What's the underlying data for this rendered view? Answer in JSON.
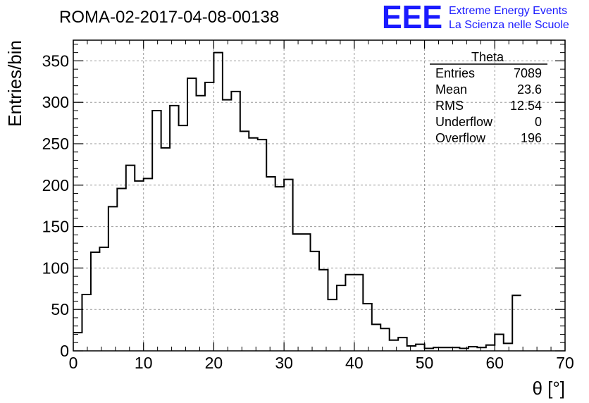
{
  "header": {
    "title": "ROMA-02-2017-04-08-00138"
  },
  "logo": {
    "mark": "EEE",
    "line1": "Extreme Energy Events",
    "line2": "La Scienza nelle Scuole",
    "color": "#1a1aff"
  },
  "stats_box": {
    "name": "Theta",
    "rows": [
      {
        "label": "Entries",
        "value": "7089"
      },
      {
        "label": "Mean",
        "value": "23.6"
      },
      {
        "label": "RMS",
        "value": "12.54"
      },
      {
        "label": "Underflow",
        "value": "0"
      },
      {
        "label": "Overflow",
        "value": "196"
      }
    ]
  },
  "chart_data": {
    "type": "bar",
    "histogram": true,
    "xlabel": "θ [°]",
    "ylabel": "Entries/bin",
    "xlim": [
      0,
      70
    ],
    "ylim": [
      0,
      375
    ],
    "grid": true,
    "x_ticks": [
      0,
      10,
      20,
      30,
      40,
      50,
      60,
      70
    ],
    "y_ticks": [
      0,
      50,
      100,
      150,
      200,
      250,
      300,
      350
    ],
    "bin_width": 1.25,
    "bin_edges_start": 0,
    "values": [
      22,
      68,
      119,
      125,
      174,
      196,
      224,
      205,
      208,
      290,
      245,
      296,
      272,
      329,
      308,
      324,
      360,
      303,
      313,
      265,
      257,
      255,
      210,
      198,
      207,
      141,
      141,
      120,
      98,
      62,
      79,
      92,
      92,
      57,
      32,
      27,
      13,
      16,
      6,
      8,
      3,
      4,
      4,
      4,
      3,
      5,
      4,
      7,
      20,
      9,
      67
    ],
    "line_color": "#000000"
  }
}
